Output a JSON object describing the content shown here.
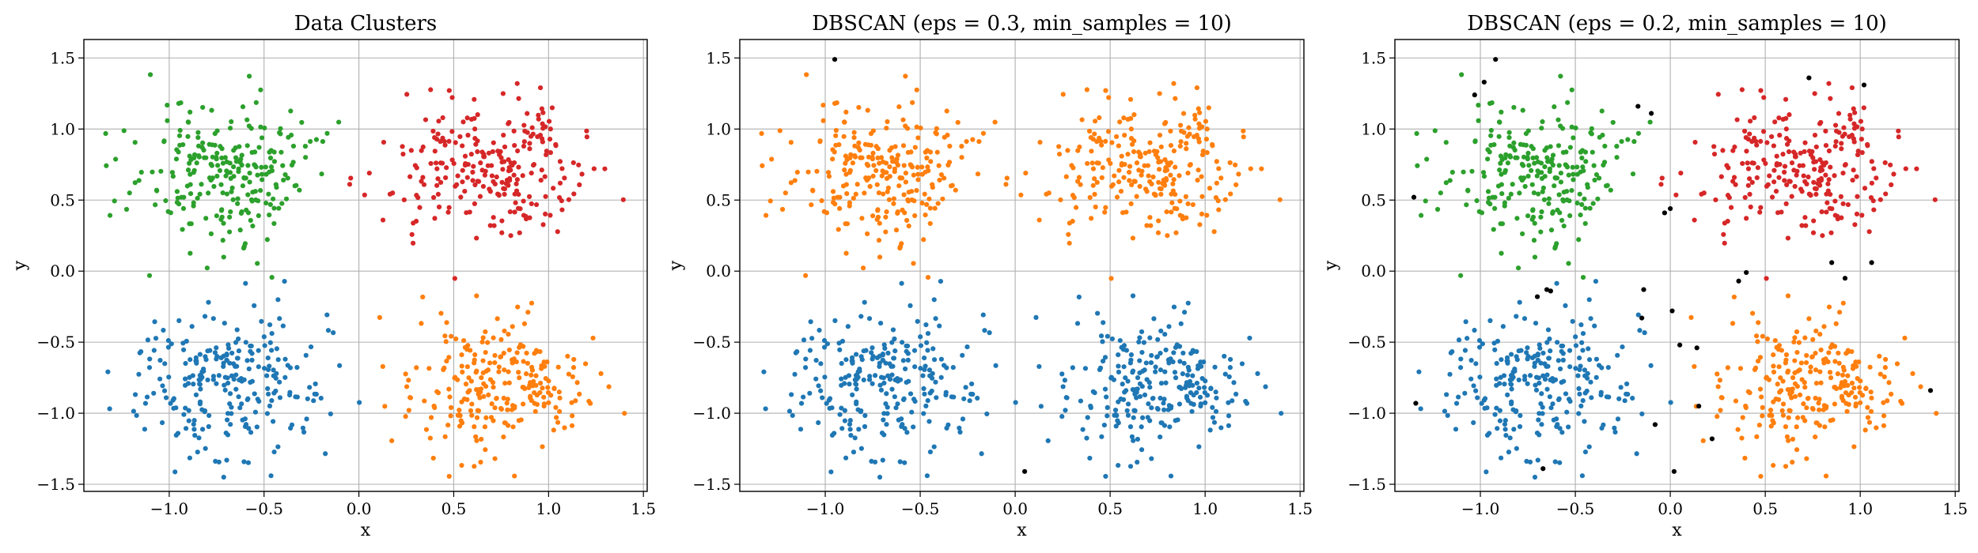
{
  "chart_data": [
    {
      "type": "scatter",
      "title": "Data Clusters",
      "xlabel": "x",
      "ylabel": "y",
      "xlim": [
        -1.45,
        1.52
      ],
      "ylim": [
        -1.55,
        1.63
      ],
      "xticks": [
        "−1.0",
        "−0.5",
        "0.0",
        "0.5",
        "1.0",
        "1.5"
      ],
      "yticks": [
        "−1.5",
        "−1.0",
        "−0.5",
        "0.0",
        "0.5",
        "1.0",
        "1.5"
      ],
      "grid": true,
      "coloring": "true",
      "series": [
        {
          "color": "#1f77b4",
          "center": [
            -0.7,
            -0.8
          ]
        },
        {
          "color": "#ff7f0e",
          "center": [
            0.7,
            -0.8
          ]
        },
        {
          "color": "#2ca02c",
          "center": [
            -0.7,
            0.7
          ]
        },
        {
          "color": "#d62728",
          "center": [
            0.7,
            0.7
          ]
        }
      ]
    },
    {
      "type": "scatter",
      "title": "DBSCAN (eps = 0.3, min_samples = 10)",
      "xlabel": "x",
      "ylabel": "y",
      "xlim": [
        -1.45,
        1.52
      ],
      "ylim": [
        -1.55,
        1.63
      ],
      "xticks": [
        "−1.0",
        "−0.5",
        "0.0",
        "0.5",
        "1.0",
        "1.5"
      ],
      "yticks": [
        "−1.5",
        "−1.0",
        "−0.5",
        "0.0",
        "0.5",
        "1.0",
        "1.5"
      ],
      "grid": true,
      "coloring": "eps03",
      "series": [
        {
          "color": "#ff7f0e",
          "center": [
            0.0,
            0.7
          ]
        },
        {
          "color": "#1f77b4",
          "center": [
            0.0,
            -0.8
          ]
        },
        {
          "color": "#000000",
          "points": [
            [
              -0.95,
              1.49
            ],
            [
              0.05,
              -1.41
            ]
          ]
        }
      ]
    },
    {
      "type": "scatter",
      "title": "DBSCAN (eps = 0.2, min_samples = 10)",
      "xlabel": "x",
      "ylabel": "y",
      "xlim": [
        -1.45,
        1.52
      ],
      "ylim": [
        -1.55,
        1.63
      ],
      "xticks": [
        "−1.0",
        "−0.5",
        "0.0",
        "0.5",
        "1.0",
        "1.5"
      ],
      "yticks": [
        "−1.5",
        "−1.0",
        "−0.5",
        "0.0",
        "0.5",
        "1.0",
        "1.5"
      ],
      "grid": true,
      "coloring": "eps02",
      "series": [
        {
          "color": "#1f77b4",
          "center": [
            -0.7,
            -0.8
          ]
        },
        {
          "color": "#ff7f0e",
          "center": [
            0.7,
            -0.8
          ]
        },
        {
          "color": "#2ca02c",
          "center": [
            -0.7,
            0.7
          ]
        },
        {
          "color": "#d62728",
          "center": [
            0.7,
            0.7
          ]
        },
        {
          "color": "#000000",
          "points": [
            [
              -1.35,
              0.52
            ],
            [
              -1.03,
              1.24
            ],
            [
              -0.98,
              1.33
            ],
            [
              -0.92,
              1.49
            ],
            [
              -0.7,
              -0.18
            ],
            [
              -0.65,
              -0.13
            ],
            [
              -0.63,
              -0.14
            ],
            [
              -0.14,
              -0.13
            ],
            [
              -0.17,
              1.16
            ],
            [
              -0.1,
              1.11
            ],
            [
              -0.15,
              -0.33
            ],
            [
              -0.03,
              0.41
            ],
            [
              0.0,
              0.44
            ],
            [
              0.01,
              -0.28
            ],
            [
              0.05,
              -0.52
            ],
            [
              0.15,
              -0.95
            ],
            [
              0.22,
              -1.18
            ],
            [
              -0.08,
              -1.08
            ],
            [
              0.02,
              -1.41
            ],
            [
              -0.67,
              -1.39
            ],
            [
              -1.34,
              -0.93
            ],
            [
              0.4,
              -0.01
            ],
            [
              0.36,
              -0.07
            ],
            [
              0.73,
              1.36
            ],
            [
              0.85,
              0.06
            ],
            [
              0.92,
              -0.05
            ],
            [
              1.02,
              1.31
            ],
            [
              1.06,
              0.06
            ],
            [
              1.37,
              -0.84
            ],
            [
              0.14,
              -0.54
            ]
          ]
        }
      ]
    }
  ]
}
